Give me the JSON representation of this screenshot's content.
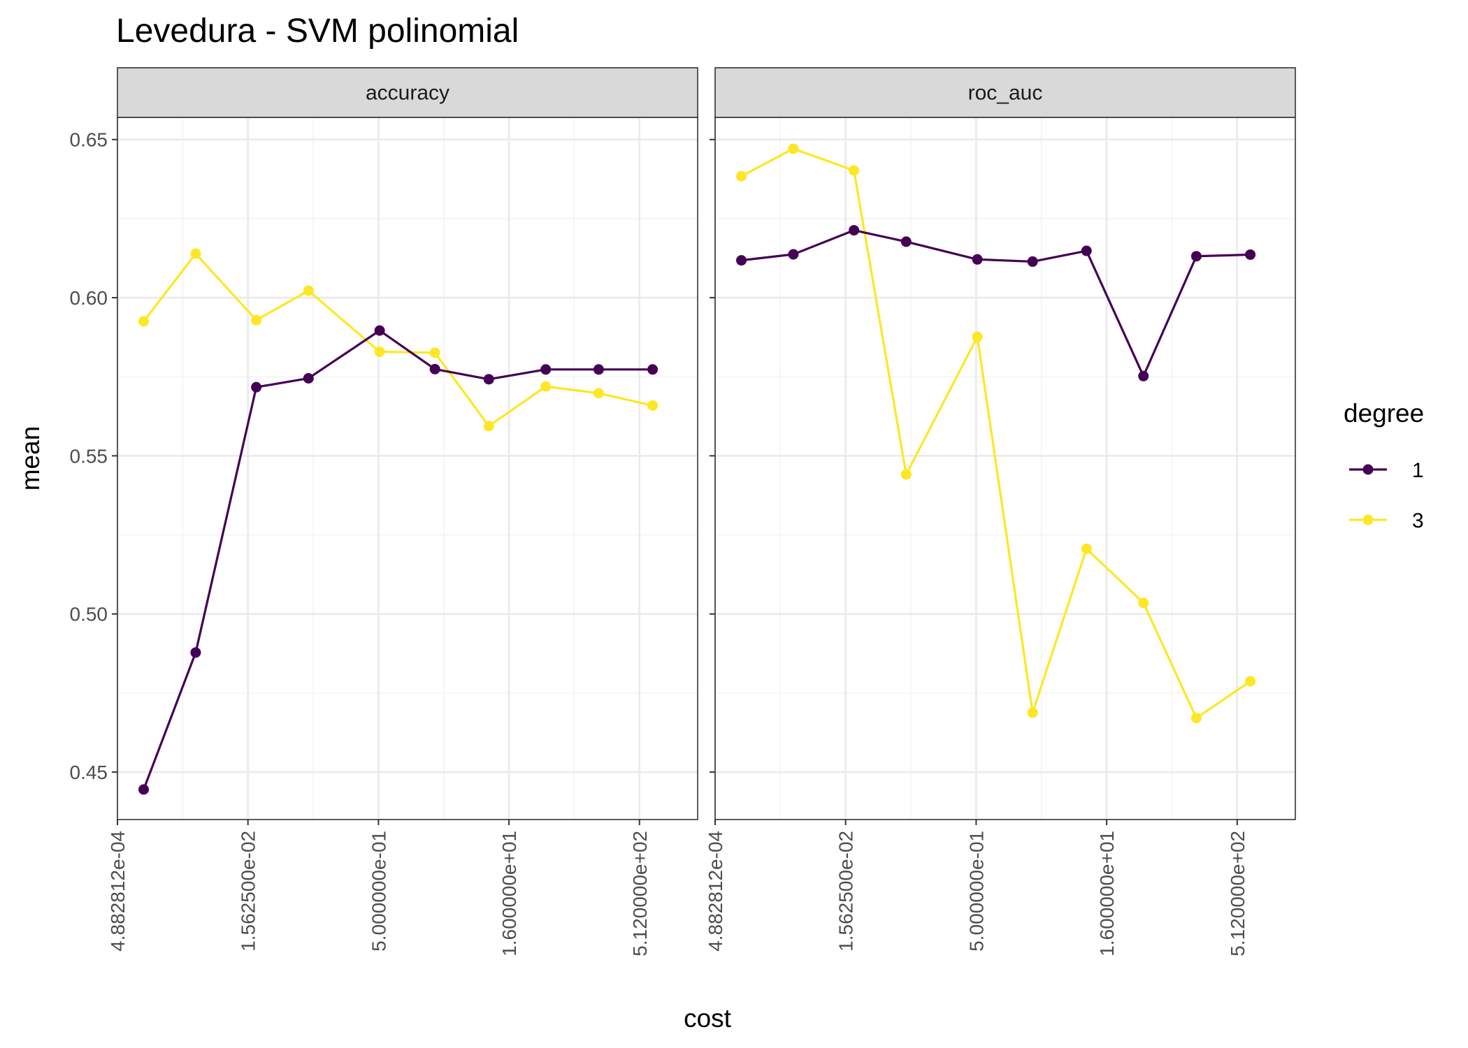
{
  "chart_data": {
    "type": "line",
    "title": "Levedura - SVM polinomial",
    "xlabel": "cost",
    "ylabel": "mean",
    "x_scale": "log2",
    "x_ticks": [
      0.00048828125,
      0.015625,
      0.5,
      16,
      512
    ],
    "x_tick_labels": [
      "4.882812e-04",
      "1.562500e-02",
      "5.000000e-01",
      "1.600000e+01",
      "5.120000e+02"
    ],
    "xlim": [
      0.00048828125,
      2400
    ],
    "ylim": [
      0.435,
      0.657
    ],
    "y_ticks": [
      0.45,
      0.5,
      0.55,
      0.6,
      0.65
    ],
    "y_tick_labels": [
      "0.45",
      "0.50",
      "0.55",
      "0.60",
      "0.65"
    ],
    "grid": true,
    "legend": {
      "title": "degree",
      "position": "right",
      "entries": [
        {
          "label": "1",
          "color": "#440154"
        },
        {
          "label": "3",
          "color": "#FDE725"
        }
      ]
    },
    "panels": [
      {
        "strip": "accuracy",
        "x": [
          0.00098,
          0.0039,
          0.0195,
          0.078,
          0.516,
          2.24,
          9.37,
          42.5,
          173.3,
          725.8
        ],
        "series": [
          {
            "name": "1",
            "color": "#440154",
            "values": [
              0.4445,
              0.4878,
              0.5717,
              0.5745,
              0.5896,
              0.5774,
              0.5742,
              0.5773,
              0.5773,
              0.5773
            ]
          },
          {
            "name": "3",
            "color": "#FDE725",
            "values": [
              0.5925,
              0.6139,
              0.5929,
              0.6022,
              0.5829,
              0.5826,
              0.5594,
              0.5719,
              0.5698,
              0.5659
            ]
          }
        ]
      },
      {
        "strip": "roc_auc",
        "x": [
          0.00098,
          0.0039,
          0.0195,
          0.078,
          0.516,
          2.24,
          9.37,
          42.5,
          173.3,
          725.8
        ],
        "series": [
          {
            "name": "1",
            "color": "#440154",
            "values": [
              0.6118,
              0.6137,
              0.6213,
              0.6177,
              0.6121,
              0.6114,
              0.6148,
              0.5752,
              0.6131,
              0.6136
            ]
          },
          {
            "name": "3",
            "color": "#FDE725",
            "values": [
              0.6384,
              0.6471,
              0.6402,
              0.5441,
              0.5876,
              0.4688,
              0.5206,
              0.5035,
              0.4671,
              0.4787
            ]
          }
        ]
      }
    ]
  }
}
